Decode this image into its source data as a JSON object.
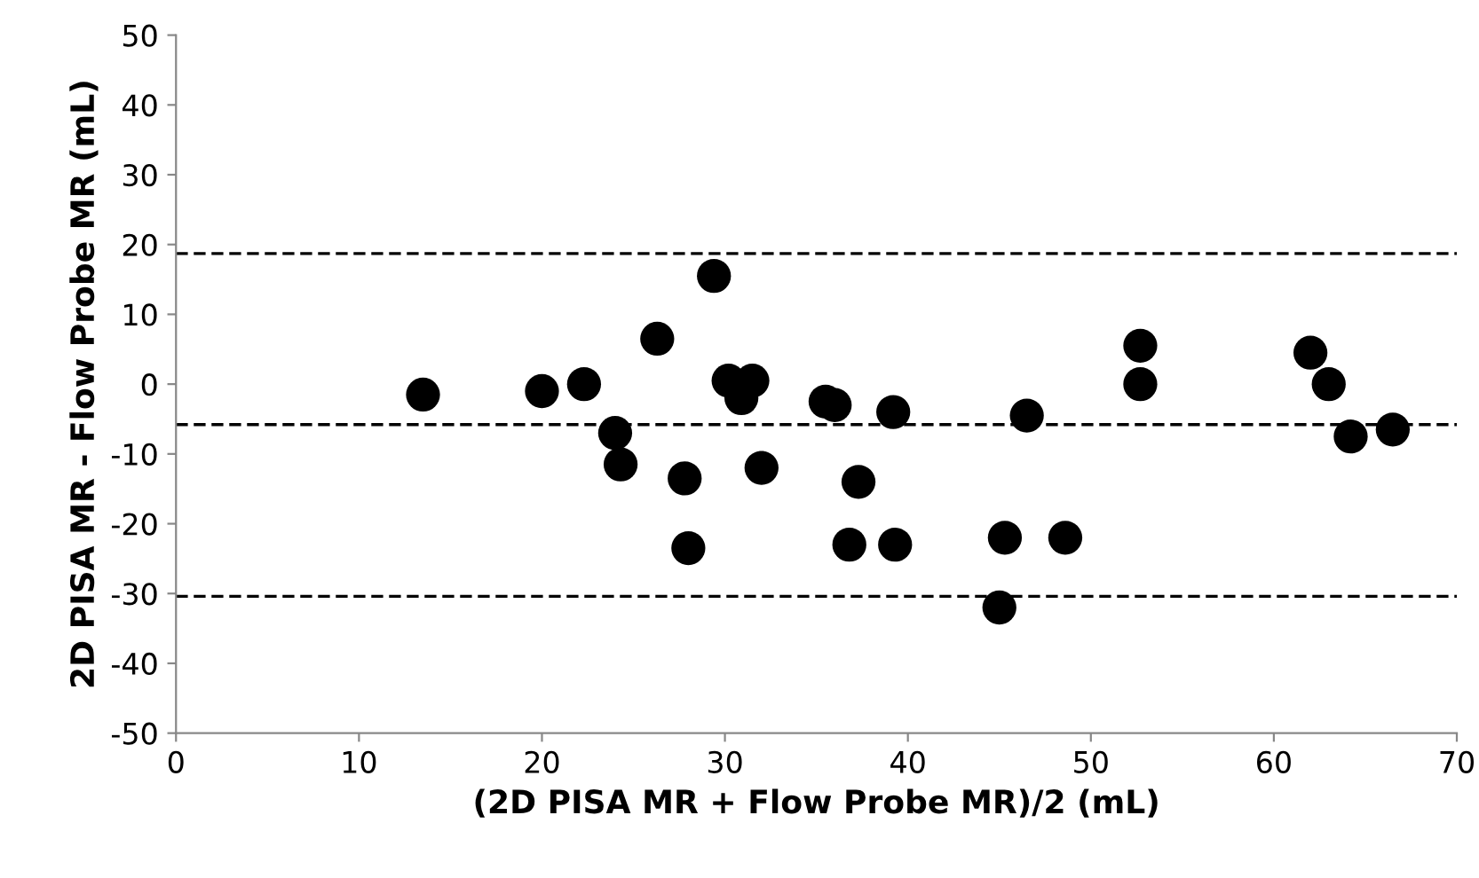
{
  "chart_data": {
    "type": "scatter",
    "xlabel": "(2D PISA MR + Flow Probe MR)/2 (mL)",
    "ylabel": "2D PISA MR - Flow Probe MR (mL)",
    "x": [
      13.5,
      20,
      22.3,
      24,
      24.3,
      26.3,
      27.8,
      28,
      29.4,
      30.2,
      30.9,
      31.5,
      32,
      35.5,
      36,
      36.8,
      37.3,
      39.2,
      39.3,
      45,
      45.3,
      46.5,
      48.6,
      52.7,
      52.7,
      62,
      63,
      64.2,
      66.5
    ],
    "values": [
      -1.5,
      -1,
      0,
      -7,
      -11.5,
      6.5,
      -13.5,
      -23.5,
      15.5,
      0.5,
      -2,
      0.5,
      -12,
      -2.5,
      -3,
      -23,
      -14,
      -4,
      -23,
      -32,
      -22,
      -4.5,
      -22,
      5.5,
      0,
      4.5,
      0,
      -7.5,
      -6.5
    ],
    "color": "#000000",
    "marker": "circle",
    "xlim": [
      0,
      70
    ],
    "xticks": [
      0,
      10,
      20,
      30,
      40,
      50,
      60,
      70
    ],
    "ylim": [
      -50,
      50
    ],
    "yticks": [
      -50,
      -40,
      -30,
      -20,
      -10,
      0,
      10,
      20,
      30,
      40,
      50
    ],
    "ref_lines": [
      {
        "axis": "y",
        "value": 18.7,
        "line_style": "dashed",
        "color": "#000000"
      },
      {
        "axis": "y",
        "value": -5.8,
        "line_style": "dashed",
        "color": "#000000"
      },
      {
        "axis": "y",
        "value": -30.4,
        "line_style": "dashed",
        "color": "#000000"
      }
    ],
    "grid": false,
    "legend": false
  }
}
